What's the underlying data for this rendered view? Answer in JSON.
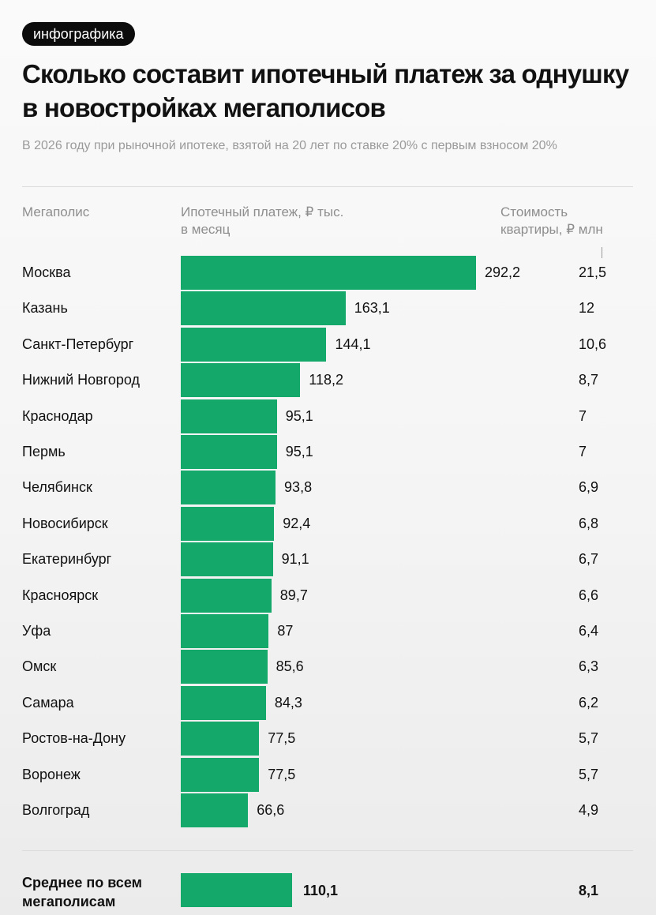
{
  "tag": "инфографика",
  "title": "Сколько составит ипотечный платеж за однушку в новостройках мегаполисов",
  "subtitle": "В 2026 году при рыночной ипотеке, взятой на 20 лет по ставке 20% с первым взносом 20%",
  "columns": {
    "city": "Мегаполис",
    "payment": "Ипотечный платеж, ₽ тыс. в месяц",
    "cost": "Стоимость квартиры, ₽ млн"
  },
  "colors": {
    "bar": "#14a96a",
    "tag_bg": "#0c0c0c"
  },
  "chart_data": {
    "type": "bar",
    "orientation": "horizontal",
    "title": "Сколько составит ипотечный платеж за однушку в новостройках мегаполисов",
    "categories": [
      "Москва",
      "Казань",
      "Санкт-Петербург",
      "Нижний Новгород",
      "Краснодар",
      "Пермь",
      "Челябинск",
      "Новосибирск",
      "Екатеринбург",
      "Красноярск",
      "Уфа",
      "Омск",
      "Самара",
      "Ростов-на-Дону",
      "Воронеж",
      "Волгоград"
    ],
    "values": [
      292.2,
      163.1,
      144.1,
      118.2,
      95.1,
      95.1,
      93.8,
      92.4,
      91.1,
      89.7,
      87,
      85.6,
      84.3,
      77.5,
      77.5,
      66.6
    ],
    "value_labels": [
      "292,2",
      "163,1",
      "144,1",
      "118,2",
      "95,1",
      "95,1",
      "93,8",
      "92,4",
      "91,1",
      "89,7",
      "87",
      "85,6",
      "84,3",
      "77,5",
      "77,5",
      "66,6"
    ],
    "cost_labels": [
      "21,5",
      "12",
      "10,6",
      "8,7",
      "7",
      "7",
      "6,9",
      "6,8",
      "6,7",
      "6,6",
      "6,4",
      "6,3",
      "6,2",
      "5,7",
      "5,7",
      "4,9"
    ],
    "average": {
      "label": "Среднее по всем мегаполисам",
      "value": 110.1,
      "value_label": "110,1",
      "cost_label": "8,1"
    },
    "grid": false
  }
}
